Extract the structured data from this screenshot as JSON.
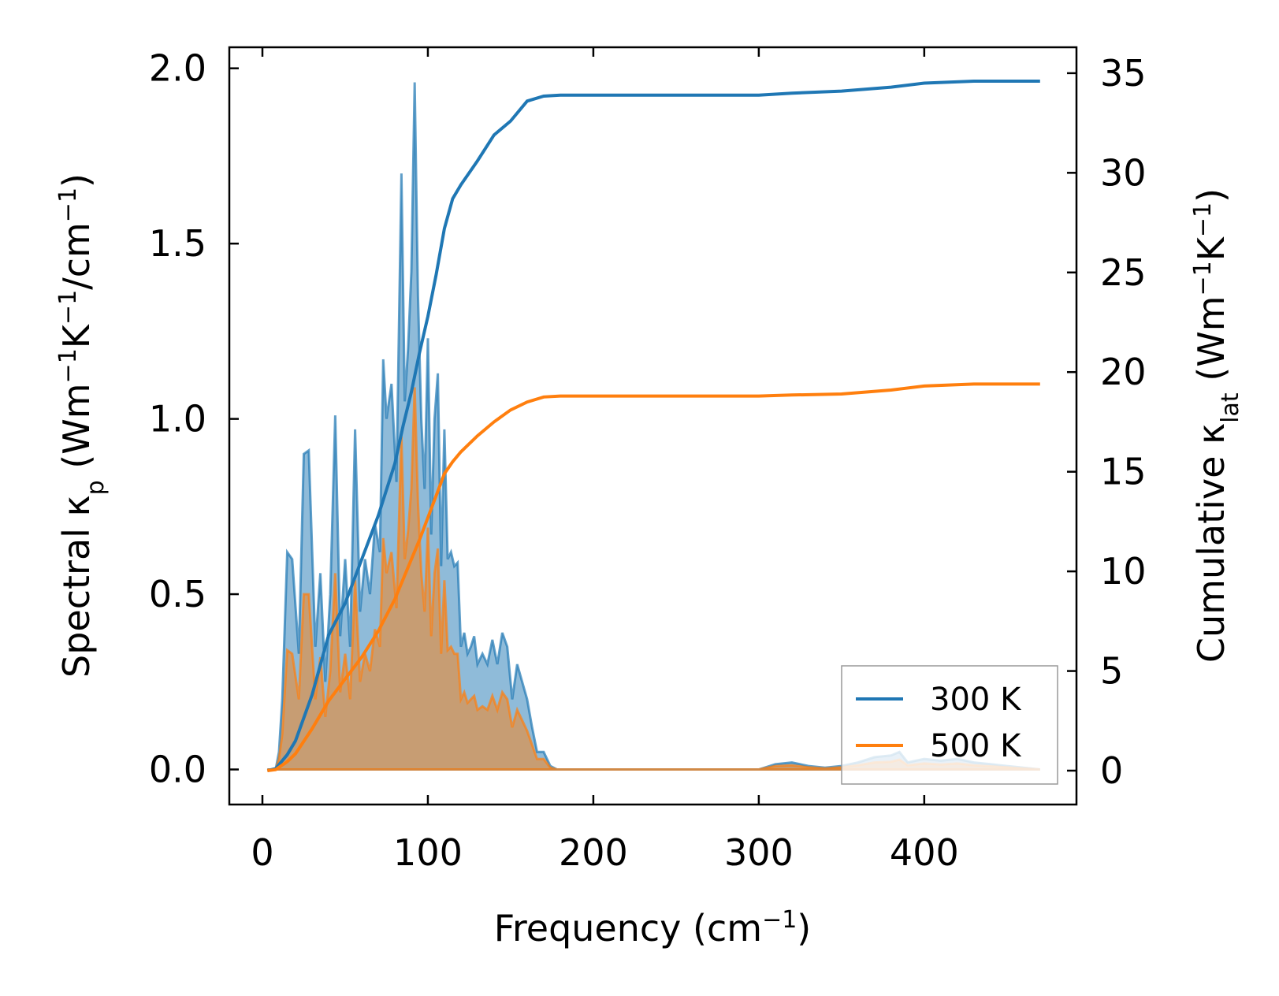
{
  "chart_data": {
    "type": "line",
    "xlabel": "Frequency (cm⁻¹)",
    "ylabel_left": "Spectral κₚ (Wm⁻¹K⁻¹/cm⁻¹)",
    "ylabel_right": "Cumulative κₗₐₜ (Wm⁻¹K⁻¹)",
    "xlim": [
      -20,
      492
    ],
    "ylim_left": [
      -0.1,
      2.06
    ],
    "ylim_right": [
      -1.7,
      36.3
    ],
    "xticks": [
      0,
      100,
      200,
      300,
      400
    ],
    "xtick_labels": [
      "0",
      "100",
      "200",
      "300",
      "400"
    ],
    "yticks_left": [
      0.0,
      0.5,
      1.0,
      1.5,
      2.0
    ],
    "ytick_labels_left": [
      "0.0",
      "0.5",
      "1.0",
      "1.5",
      "2.0"
    ],
    "yticks_right": [
      0,
      5,
      10,
      15,
      20,
      25,
      30,
      35
    ],
    "ytick_labels_right": [
      "0",
      "5",
      "10",
      "15",
      "20",
      "25",
      "30",
      "35"
    ],
    "grid": false,
    "legend_position": "bottom-right",
    "colors": {
      "t300": "#1f77b4",
      "t500": "#ff7f0e"
    },
    "spectral": [
      {
        "name": "300 K",
        "x": [
          3,
          8,
          10,
          12,
          15,
          18,
          22,
          25,
          28,
          32,
          35,
          38,
          41,
          44,
          47,
          50,
          53,
          56,
          59,
          62,
          65,
          68,
          71,
          73,
          75,
          78,
          81,
          84,
          86,
          88,
          90,
          92,
          94,
          96,
          98,
          100,
          102,
          104,
          106,
          108,
          110,
          112,
          114,
          116,
          118,
          120,
          122,
          124,
          126,
          128,
          130,
          133,
          136,
          139,
          142,
          145,
          148,
          151,
          154,
          157,
          160,
          163,
          166,
          170,
          174,
          178,
          182,
          186,
          200,
          250,
          300,
          310,
          320,
          330,
          340,
          350,
          360,
          370,
          380,
          385,
          390,
          400,
          410,
          420,
          430,
          440,
          450,
          460,
          470
        ],
        "values": [
          0.0,
          0.0,
          0.05,
          0.2,
          0.62,
          0.6,
          0.33,
          0.9,
          0.91,
          0.35,
          0.56,
          0.25,
          0.5,
          1.01,
          0.38,
          0.6,
          0.35,
          0.97,
          0.45,
          0.6,
          0.5,
          0.7,
          0.62,
          1.17,
          1.0,
          1.1,
          0.82,
          1.7,
          1.05,
          1.2,
          1.42,
          1.96,
          1.35,
          1.0,
          0.8,
          1.23,
          0.67,
          1.0,
          1.13,
          0.58,
          0.97,
          0.6,
          0.62,
          0.58,
          0.59,
          0.35,
          0.39,
          0.33,
          0.35,
          0.38,
          0.3,
          0.33,
          0.3,
          0.37,
          0.3,
          0.39,
          0.35,
          0.2,
          0.3,
          0.25,
          0.2,
          0.12,
          0.05,
          0.05,
          0.01,
          0.0,
          0.0,
          0.0,
          0.0,
          0.0,
          0.0,
          0.015,
          0.02,
          0.01,
          0.005,
          0.01,
          0.02,
          0.035,
          0.04,
          0.05,
          0.02,
          0.03,
          0.025,
          0.03,
          0.02,
          0.015,
          0.01,
          0.005,
          0.0
        ]
      },
      {
        "name": "500 K",
        "x": [
          3,
          8,
          10,
          12,
          15,
          18,
          22,
          25,
          28,
          32,
          35,
          38,
          41,
          44,
          47,
          50,
          53,
          56,
          59,
          62,
          65,
          68,
          71,
          73,
          75,
          78,
          81,
          84,
          86,
          88,
          90,
          92,
          94,
          96,
          98,
          100,
          102,
          104,
          106,
          108,
          110,
          112,
          114,
          116,
          118,
          120,
          122,
          124,
          126,
          128,
          130,
          133,
          136,
          139,
          142,
          145,
          148,
          151,
          154,
          157,
          160,
          163,
          166,
          170,
          174,
          178,
          182,
          186,
          200,
          250,
          300,
          310,
          320,
          330,
          340,
          350,
          360,
          370,
          380,
          385,
          390,
          400,
          410,
          420,
          430,
          440,
          450,
          460,
          470
        ],
        "values": [
          0.0,
          0.0,
          0.03,
          0.1,
          0.34,
          0.33,
          0.2,
          0.5,
          0.5,
          0.2,
          0.32,
          0.15,
          0.28,
          0.56,
          0.22,
          0.33,
          0.2,
          0.54,
          0.25,
          0.33,
          0.28,
          0.4,
          0.35,
          0.66,
          0.56,
          0.62,
          0.46,
          0.95,
          0.6,
          0.68,
          0.8,
          1.09,
          0.76,
          0.56,
          0.45,
          0.69,
          0.38,
          0.56,
          0.63,
          0.33,
          0.54,
          0.34,
          0.35,
          0.33,
          0.33,
          0.2,
          0.22,
          0.19,
          0.2,
          0.21,
          0.17,
          0.18,
          0.17,
          0.21,
          0.17,
          0.22,
          0.2,
          0.12,
          0.17,
          0.14,
          0.11,
          0.07,
          0.03,
          0.03,
          0.005,
          0.0,
          0.0,
          0.0,
          0.0,
          0.0,
          0.0,
          0.01,
          0.012,
          0.006,
          0.003,
          0.006,
          0.012,
          0.02,
          0.022,
          0.028,
          0.012,
          0.017,
          0.014,
          0.017,
          0.012,
          0.009,
          0.006,
          0.003,
          0.0
        ]
      }
    ],
    "cumulative": [
      {
        "name": "300 K",
        "x": [
          3,
          8,
          15,
          20,
          30,
          40,
          50,
          60,
          70,
          80,
          85,
          90,
          95,
          100,
          105,
          110,
          115,
          120,
          130,
          140,
          150,
          160,
          170,
          180,
          200,
          250,
          300,
          320,
          350,
          380,
          400,
          430,
          450,
          470
        ],
        "values": [
          0.0,
          0.1,
          0.8,
          1.5,
          3.8,
          6.8,
          8.4,
          10.6,
          12.8,
          15.4,
          17.3,
          19.0,
          21.0,
          22.8,
          24.9,
          27.2,
          28.7,
          29.4,
          30.6,
          31.9,
          32.6,
          33.6,
          33.85,
          33.9,
          33.9,
          33.9,
          33.9,
          34.0,
          34.1,
          34.3,
          34.5,
          34.6,
          34.6,
          34.6
        ]
      },
      {
        "name": "500 K",
        "x": [
          3,
          8,
          15,
          20,
          30,
          40,
          50,
          60,
          70,
          80,
          85,
          90,
          95,
          100,
          105,
          110,
          115,
          120,
          130,
          140,
          150,
          160,
          170,
          180,
          200,
          250,
          300,
          320,
          350,
          380,
          400,
          430,
          450,
          470
        ],
        "values": [
          0.0,
          0.05,
          0.45,
          0.85,
          2.1,
          3.5,
          4.6,
          5.7,
          7.0,
          8.6,
          9.6,
          10.6,
          11.6,
          12.7,
          13.8,
          14.9,
          15.5,
          16.0,
          16.8,
          17.5,
          18.1,
          18.5,
          18.75,
          18.8,
          18.8,
          18.8,
          18.8,
          18.85,
          18.9,
          19.1,
          19.3,
          19.4,
          19.4,
          19.4
        ]
      }
    ],
    "legend": [
      {
        "label": "300 K",
        "color": "#1f77b4"
      },
      {
        "label": "500 K",
        "color": "#ff7f0e"
      }
    ]
  }
}
